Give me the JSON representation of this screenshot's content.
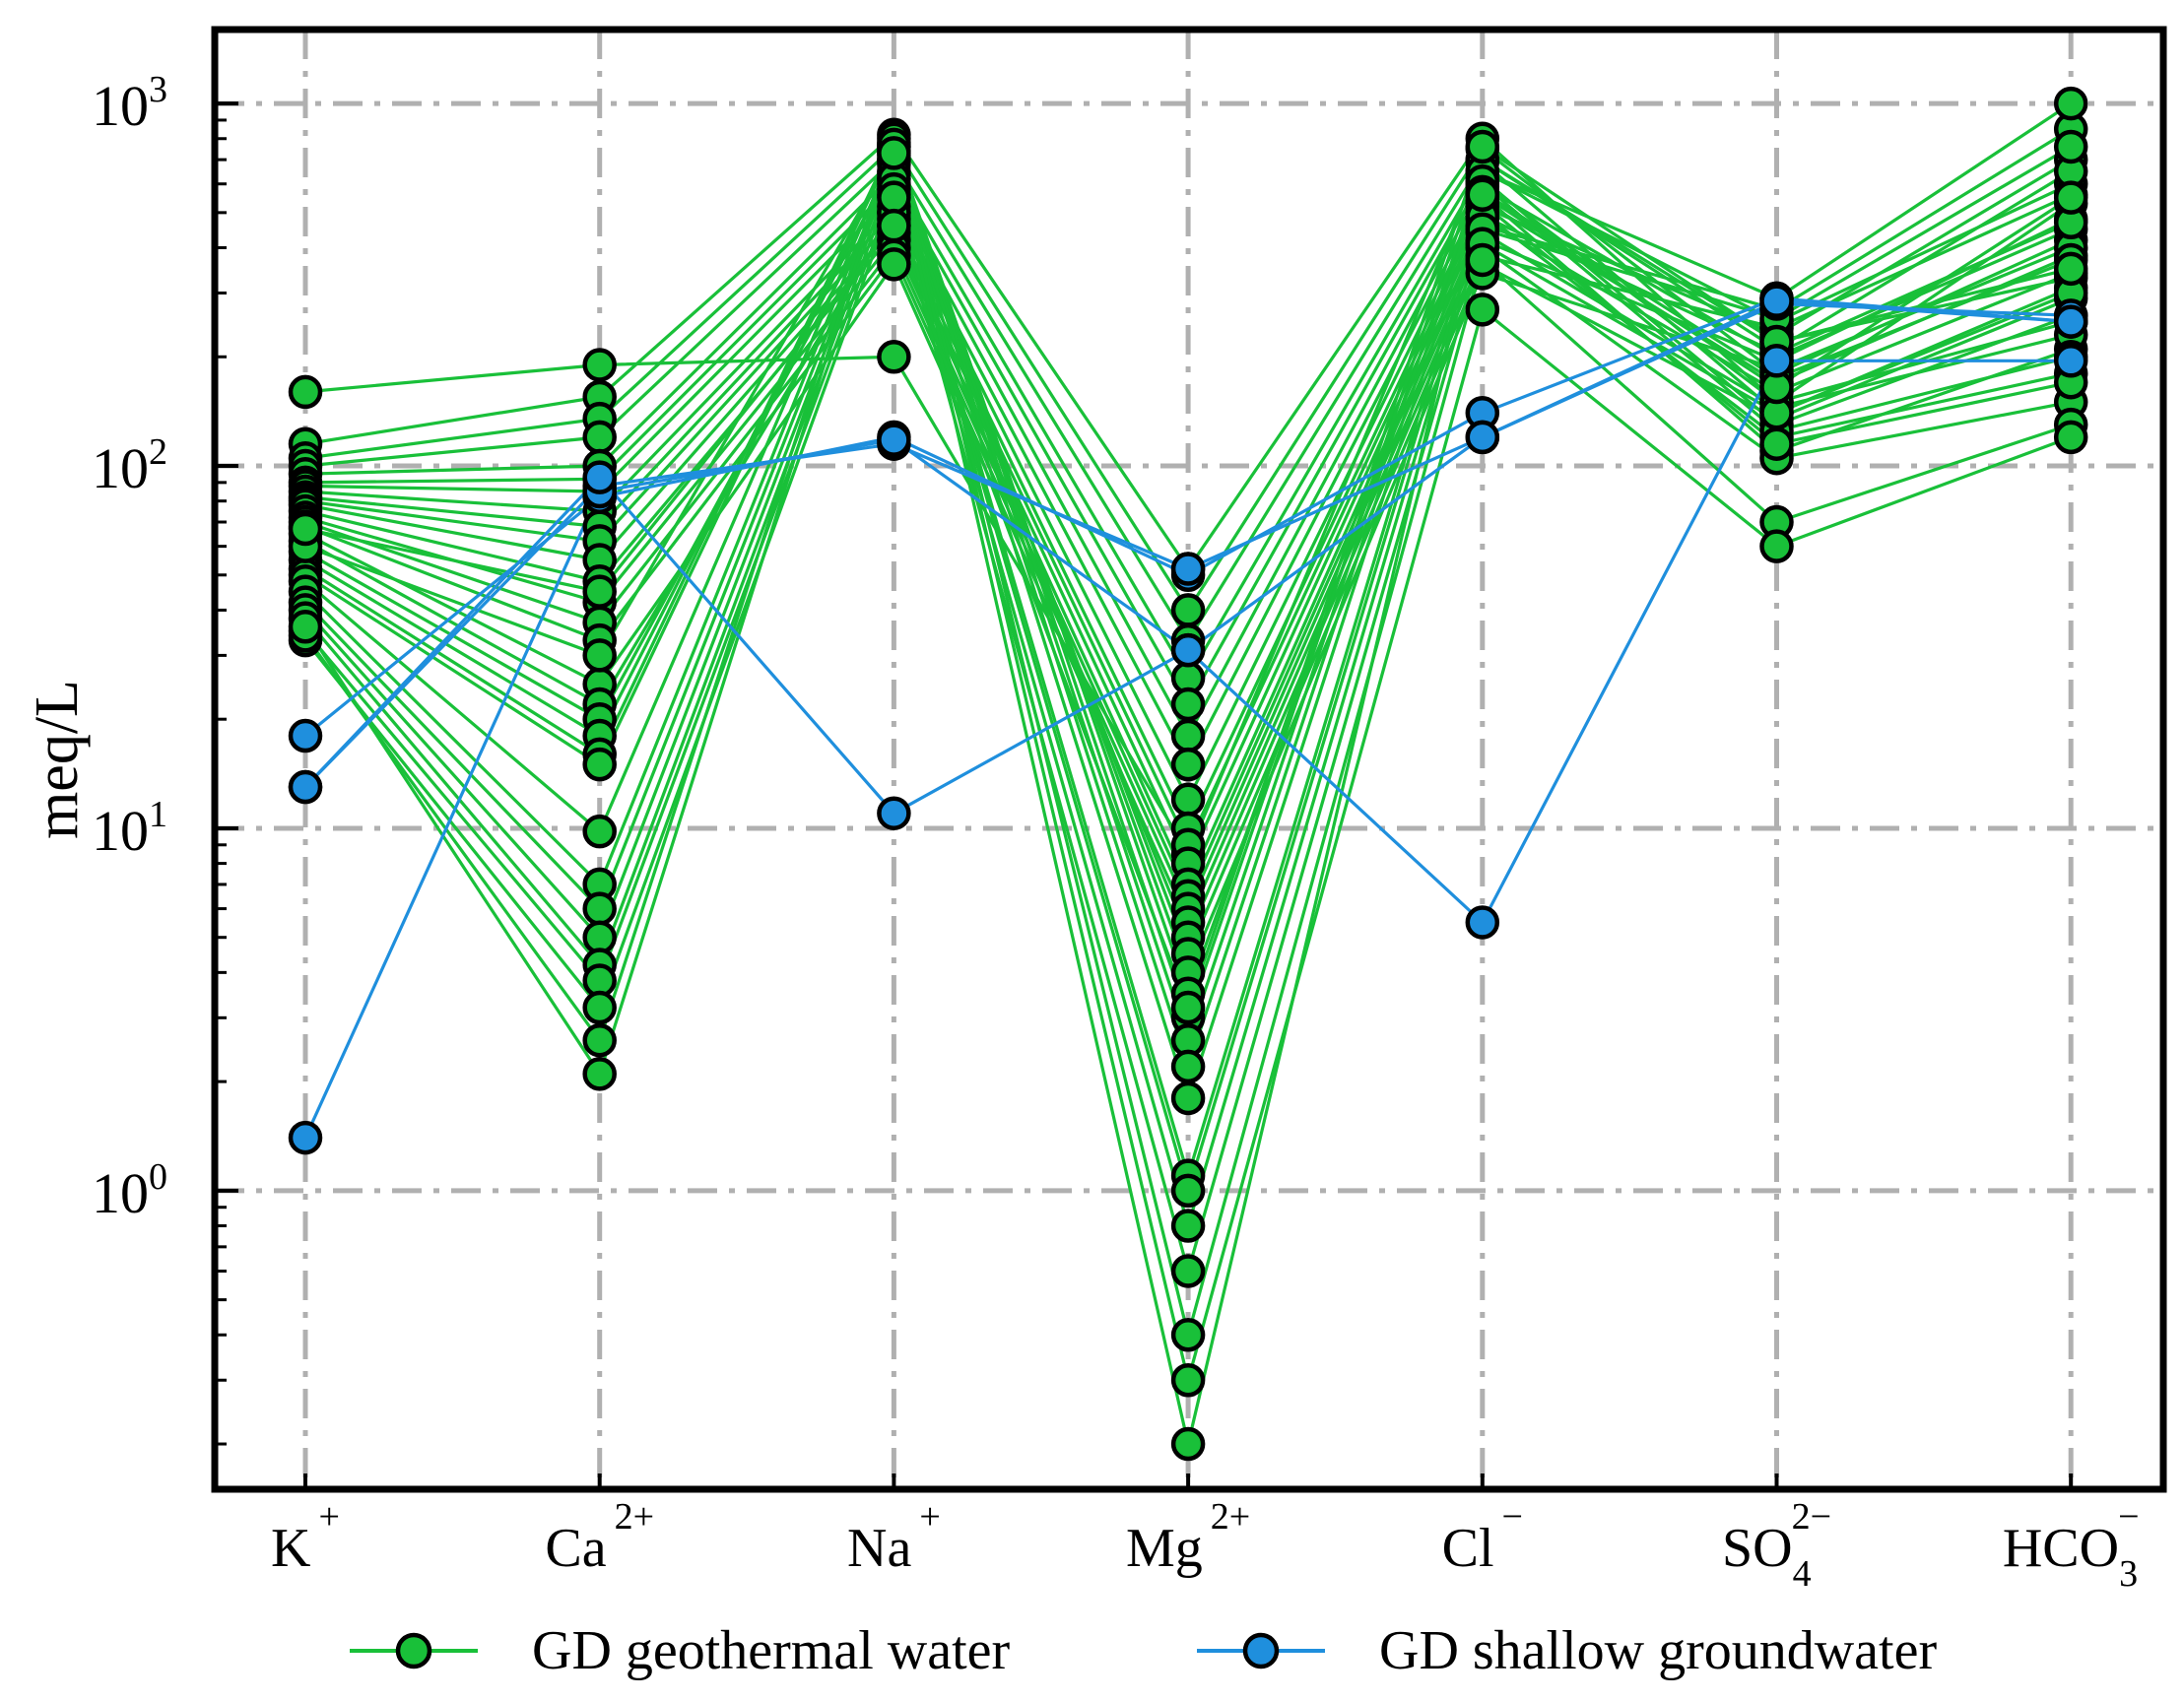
{
  "chart_data": {
    "type": "line",
    "yscale": "log",
    "ylabel": "meq/L",
    "ylim": [
      0.15,
      1600
    ],
    "ytick_labels": [
      {
        "value": 1,
        "base": "10",
        "exp": "0"
      },
      {
        "value": 10,
        "base": "10",
        "exp": "1"
      },
      {
        "value": 100,
        "base": "10",
        "exp": "2"
      },
      {
        "value": 1000,
        "base": "10",
        "exp": "3"
      }
    ],
    "categories": [
      {
        "main": "K",
        "sup": "+",
        "sub": ""
      },
      {
        "main": "Ca",
        "sup": "2+",
        "sub": ""
      },
      {
        "main": "Na",
        "sup": "+",
        "sub": ""
      },
      {
        "main": "Mg",
        "sup": "2+",
        "sub": ""
      },
      {
        "main": "Cl",
        "sup": "−",
        "sub": ""
      },
      {
        "main": "SO",
        "sup": "2−",
        "sub": "4"
      },
      {
        "main": "HCO",
        "sup": "−",
        "sub": "3"
      }
    ],
    "grid": true,
    "legend_position": "bottom",
    "series": [
      {
        "name": "GD geothermal water",
        "color": "#19c039",
        "samples": [
          [
            160,
            190,
            200,
            8.5,
            700,
            220,
            330
          ],
          [
            115,
            155,
            820,
            52,
            800,
            150,
            530
          ],
          [
            105,
            135,
            760,
            40,
            750,
            180,
            420
          ],
          [
            100,
            120,
            700,
            33,
            690,
            140,
            310
          ],
          [
            95,
            100,
            640,
            26,
            650,
            250,
            600
          ],
          [
            90,
            92,
            600,
            22,
            620,
            130,
            260
          ],
          [
            88,
            85,
            560,
            18,
            590,
            200,
            450
          ],
          [
            85,
            75,
            520,
            15,
            560,
            110,
            210
          ],
          [
            82,
            68,
            500,
            12,
            540,
            170,
            380
          ],
          [
            80,
            62,
            480,
            10,
            520,
            230,
            700
          ],
          [
            78,
            55,
            460,
            9,
            500,
            120,
            180
          ],
          [
            75,
            48,
            440,
            8,
            480,
            160,
            340
          ],
          [
            72,
            42,
            420,
            7,
            460,
            270,
            850
          ],
          [
            70,
            37,
            400,
            6.5,
            440,
            145,
            230
          ],
          [
            68,
            33,
            380,
            6,
            420,
            195,
            480
          ],
          [
            65,
            25,
            360,
            5.5,
            400,
            105,
            150
          ],
          [
            62,
            22,
            500,
            5,
            380,
            240,
            560
          ],
          [
            58,
            20,
            620,
            4.5,
            360,
            135,
            290
          ],
          [
            55,
            18,
            700,
            4,
            340,
            185,
            400
          ],
          [
            52,
            16,
            780,
            3.5,
            600,
            125,
            200
          ],
          [
            50,
            15,
            760,
            3,
            700,
            210,
            650
          ],
          [
            48,
            9.8,
            740,
            2.6,
            650,
            290,
            1000
          ],
          [
            45,
            7,
            720,
            2.2,
            610,
            150,
            250
          ],
          [
            42,
            6,
            680,
            1.8,
            570,
            175,
            370
          ],
          [
            40,
            5,
            650,
            1.1,
            530,
            115,
            170
          ],
          [
            38,
            4.2,
            620,
            1.0,
            490,
            205,
            470
          ],
          [
            35,
            3.8,
            580,
            0.8,
            450,
            255,
            760
          ],
          [
            33,
            3.2,
            550,
            0.6,
            410,
            140,
            300
          ],
          [
            34,
            2.6,
            800,
            0.4,
            370,
            70,
            130
          ],
          [
            36,
            2.1,
            770,
            0.3,
            270,
            60,
            120
          ],
          [
            60,
            30,
            730,
            0.2,
            560,
            165,
            550
          ],
          [
            67,
            45,
            460,
            3.2,
            760,
            220,
            350
          ]
        ]
      },
      {
        "name": "GD shallow groundwater",
        "color": "#1f8fdd",
        "samples": [
          [
            18,
            82,
            120,
            50,
            140,
            290,
            250
          ],
          [
            13,
            88,
            115,
            52,
            120,
            280,
            260
          ],
          [
            1.4,
            85,
            118,
            31,
            5.5,
            195,
            195
          ],
          [
            13,
            93,
            11,
            31,
            120,
            285,
            250
          ]
        ]
      }
    ]
  }
}
